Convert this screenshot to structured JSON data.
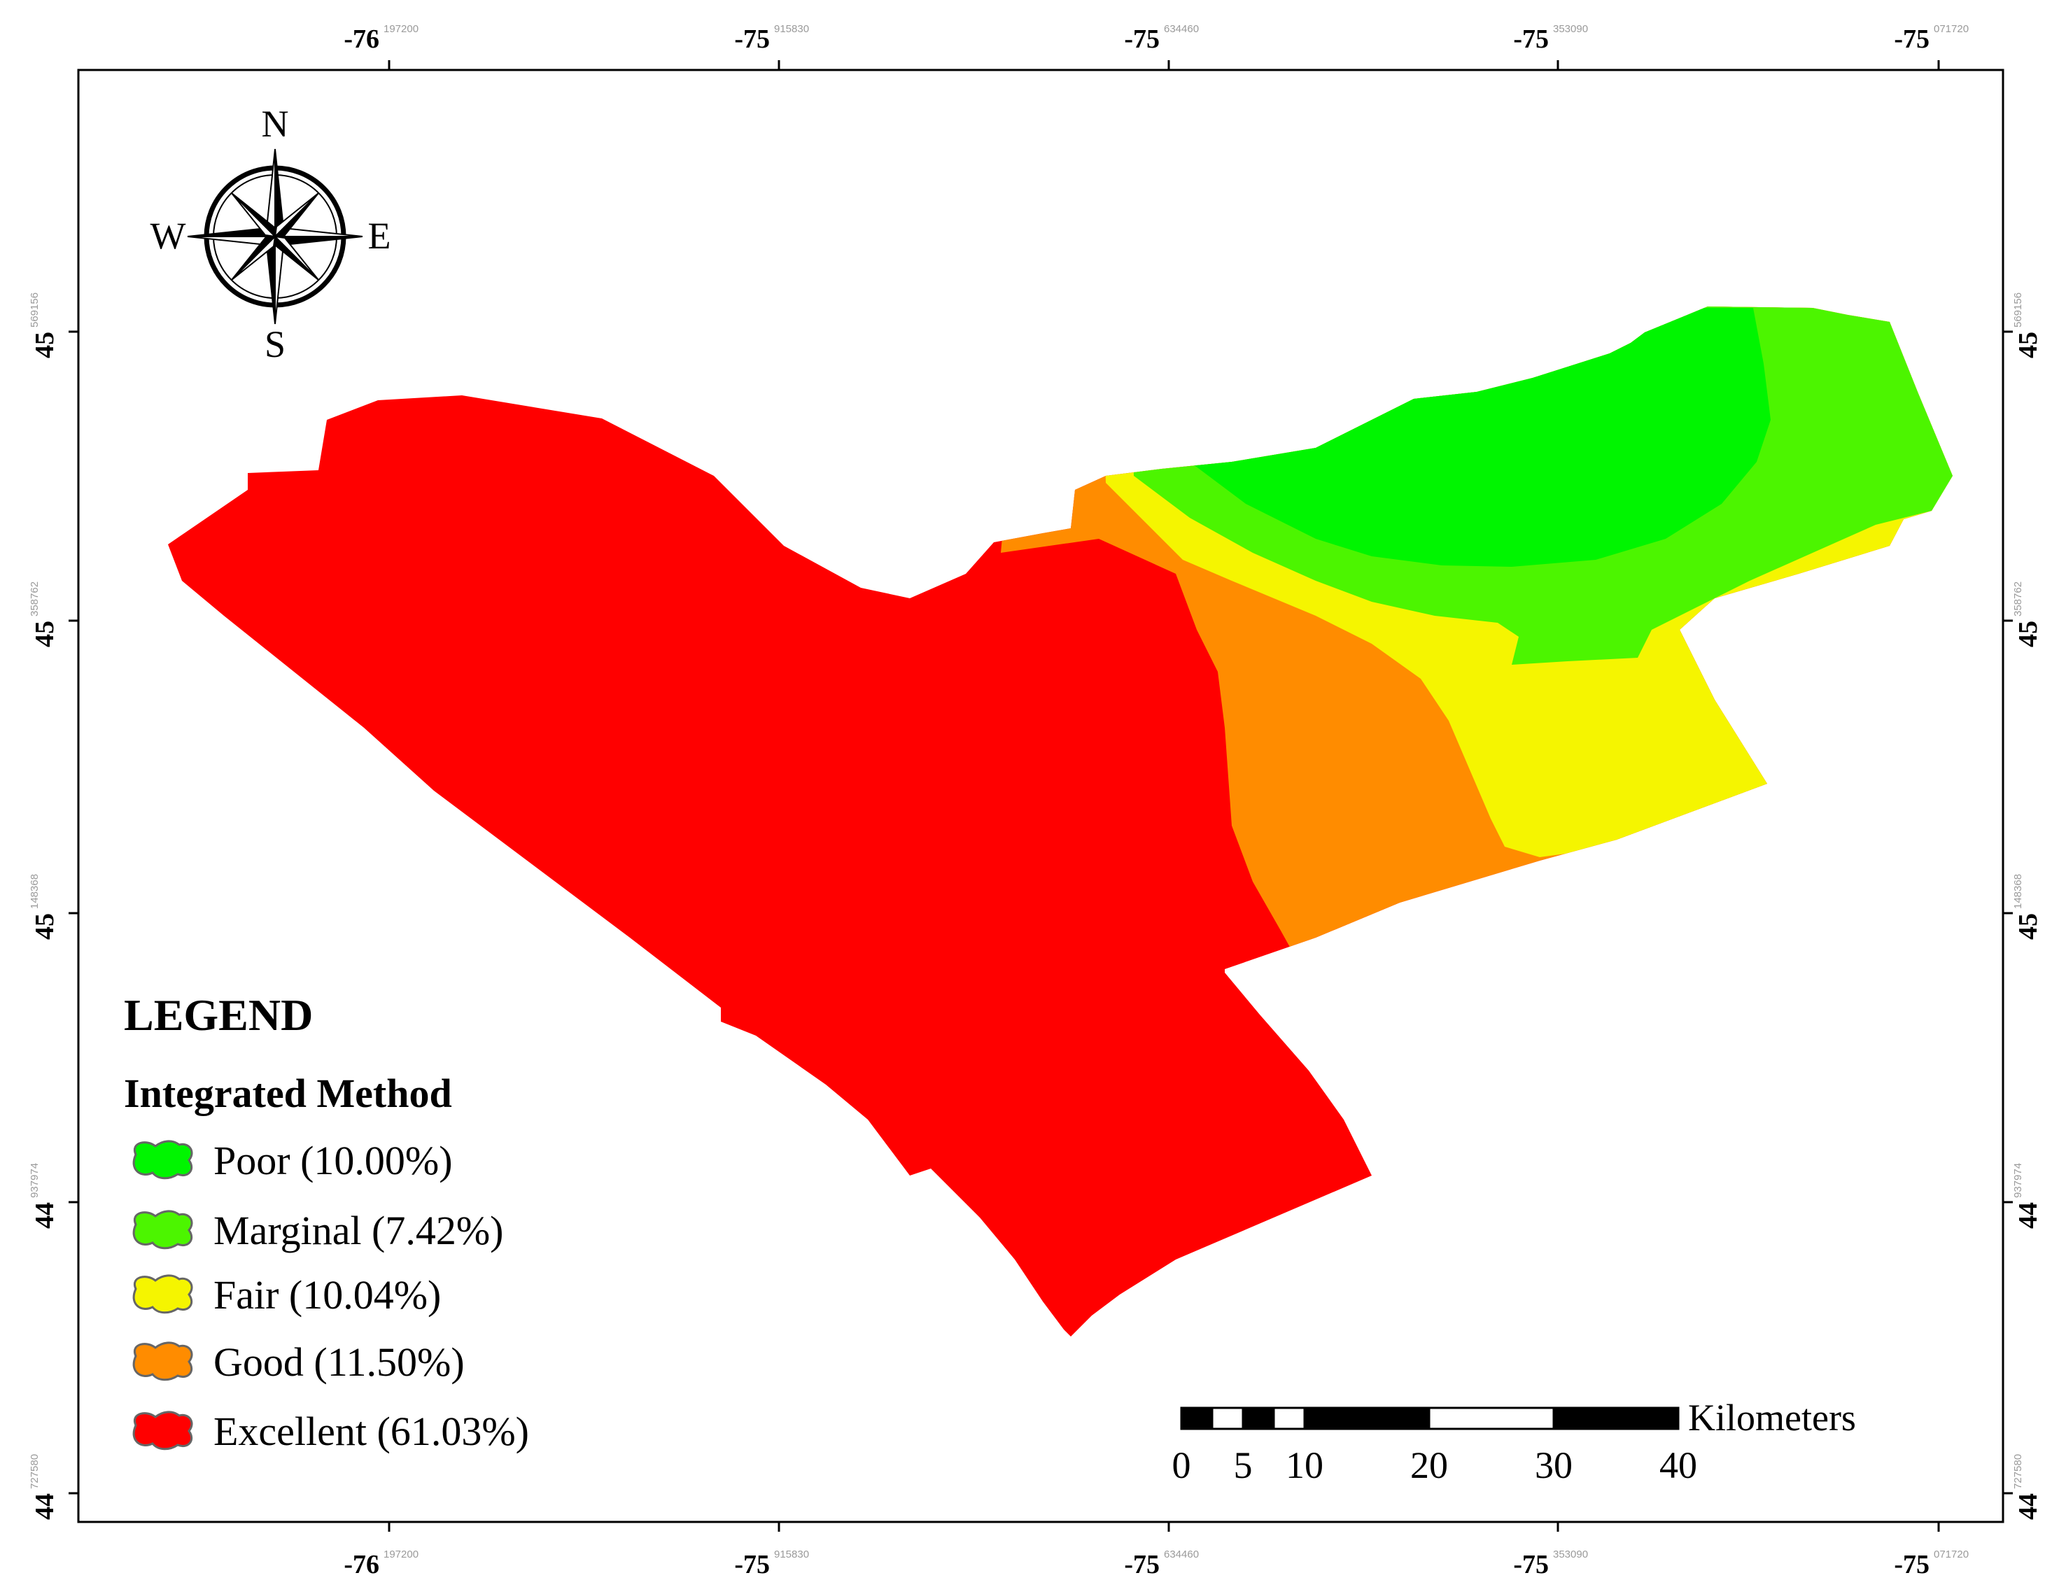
{
  "map": {
    "frame": {
      "top_ticks": [
        {
          "main": "-76",
          "sup": "197200"
        },
        {
          "main": "-75",
          "sup": "915830"
        },
        {
          "main": "-75",
          "sup": "634460"
        },
        {
          "main": "-75",
          "sup": "353090"
        },
        {
          "main": "-75",
          "sup": "071720"
        }
      ],
      "bottom_ticks": [
        {
          "main": "-76",
          "sup": "197200"
        },
        {
          "main": "-75",
          "sup": "915830"
        },
        {
          "main": "-75",
          "sup": "634460"
        },
        {
          "main": "-75",
          "sup": "353090"
        },
        {
          "main": "-75",
          "sup": "071720"
        }
      ],
      "left_ticks": [
        {
          "main": "45",
          "sup": "569156"
        },
        {
          "main": "45",
          "sup": "358762"
        },
        {
          "main": "45",
          "sup": "148368"
        },
        {
          "main": "44",
          "sup": "937974"
        },
        {
          "main": "44",
          "sup": "727580"
        }
      ],
      "right_ticks": [
        {
          "main": "45",
          "sup": "569156"
        },
        {
          "main": "45",
          "sup": "358762"
        },
        {
          "main": "45",
          "sup": "148368"
        },
        {
          "main": "44",
          "sup": "937974"
        },
        {
          "main": "44",
          "sup": "727580"
        }
      ]
    },
    "compass": {
      "n": "N",
      "s": "S",
      "e": "E",
      "w": "W"
    },
    "zone_colors": {
      "poor": "#00f500",
      "marginal": "#4cf500",
      "fair": "#f5f500",
      "good": "#ff8c00",
      "excellent": "#ff0000"
    }
  },
  "legend": {
    "title": "LEGEND",
    "subtitle": "Integrated Method",
    "items": [
      {
        "label": "Poor (10.00%)",
        "color": "#00f500"
      },
      {
        "label": "Marginal (7.42%)",
        "color": "#4cf500"
      },
      {
        "label": "Fair (10.04%)",
        "color": "#f5f500"
      },
      {
        "label": "Good (11.50%)",
        "color": "#ff8c00"
      },
      {
        "label": "Excellent (61.03%)",
        "color": "#ff0000"
      }
    ]
  },
  "scale_bar": {
    "unit": "Kilometers",
    "labels": [
      "0",
      "5",
      "10",
      "20",
      "30",
      "40"
    ]
  }
}
